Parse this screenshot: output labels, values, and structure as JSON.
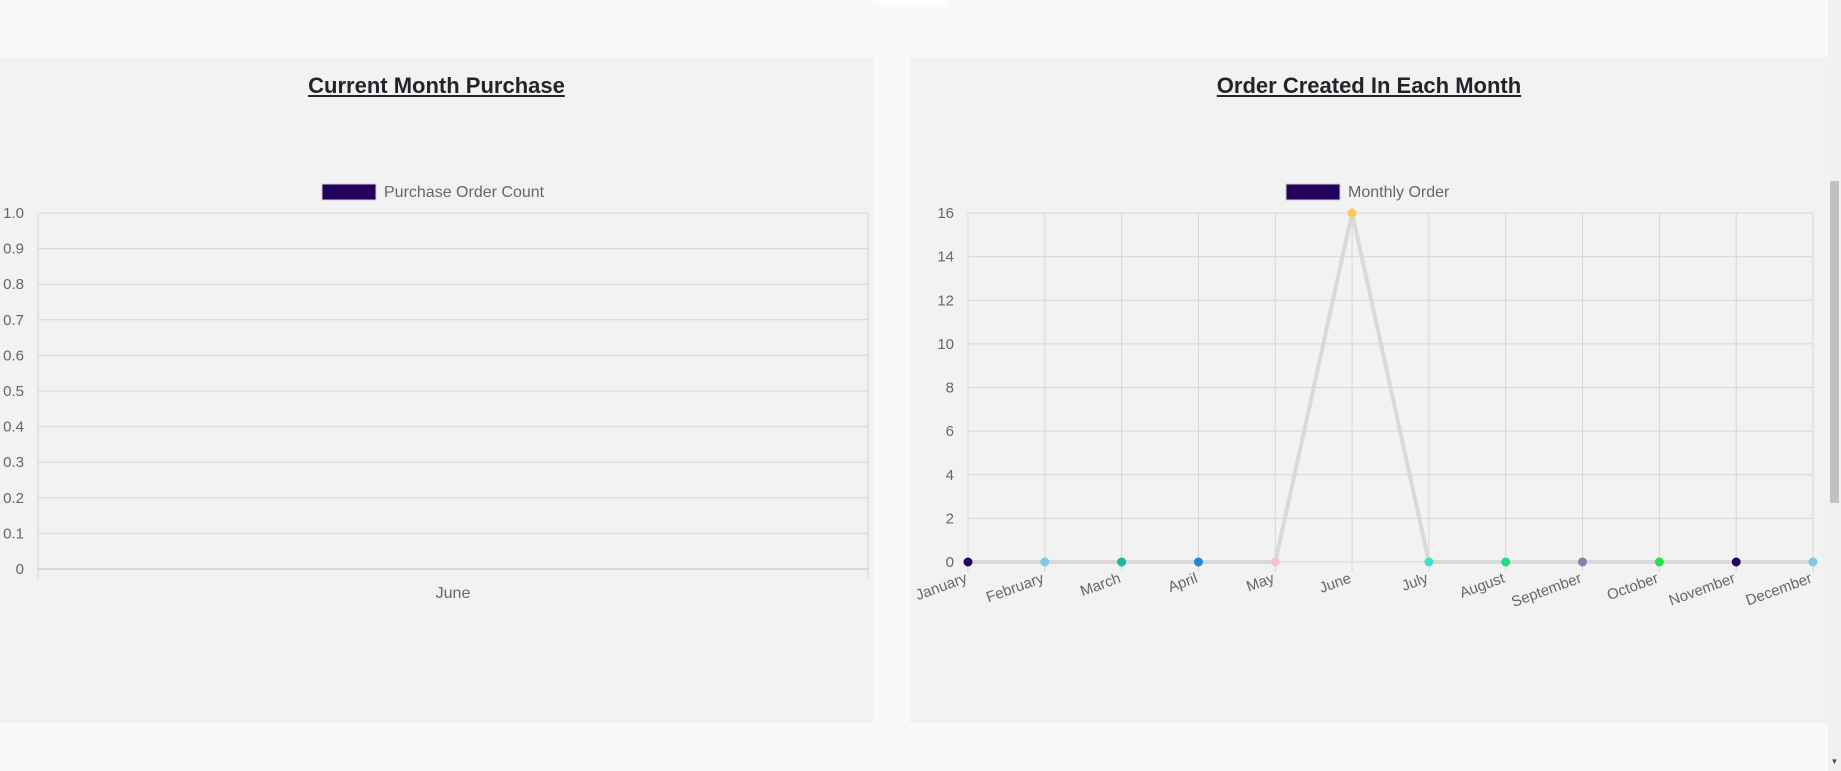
{
  "chart_data": [
    {
      "type": "bar",
      "title": "Current Month Purchase",
      "legend": {
        "label": "Purchase Order Count",
        "color": "#24005e",
        "placement": "top"
      },
      "categories": [
        "June"
      ],
      "series": [
        {
          "name": "Purchase Order Count",
          "values": [
            0
          ]
        }
      ],
      "ylim": [
        0,
        1.0
      ],
      "yticks": [
        "1.0",
        "0.9",
        "0.8",
        "0.7",
        "0.6",
        "0.5",
        "0.4",
        "0.3",
        "0.2",
        "0.1",
        "0"
      ],
      "grid": true
    },
    {
      "type": "line",
      "title": "Order Created In Each Month",
      "legend": {
        "label": "Monthly Order",
        "color": "#24005e",
        "placement": "top"
      },
      "categories": [
        "January",
        "February",
        "March",
        "April",
        "May",
        "June",
        "July",
        "August",
        "September",
        "October",
        "November",
        "December"
      ],
      "series": [
        {
          "name": "Monthly Order",
          "values": [
            0,
            0,
            0,
            0,
            0,
            16,
            0,
            0,
            0,
            0,
            0,
            0
          ]
        }
      ],
      "point_colors": [
        "#24005e",
        "#7ec8e3",
        "#17b8a6",
        "#1e88d8",
        "#f7c0cf",
        "#f6c85f",
        "#40e0d0",
        "#1fe07a",
        "#8a7fb0",
        "#22e04a",
        "#24005e",
        "#7ec8e3"
      ],
      "line_color": "#d9d9d9",
      "ylim": [
        0,
        16
      ],
      "yticks": [
        "16",
        "14",
        "12",
        "10",
        "8",
        "6",
        "4",
        "2",
        "0"
      ],
      "grid": true
    }
  ]
}
